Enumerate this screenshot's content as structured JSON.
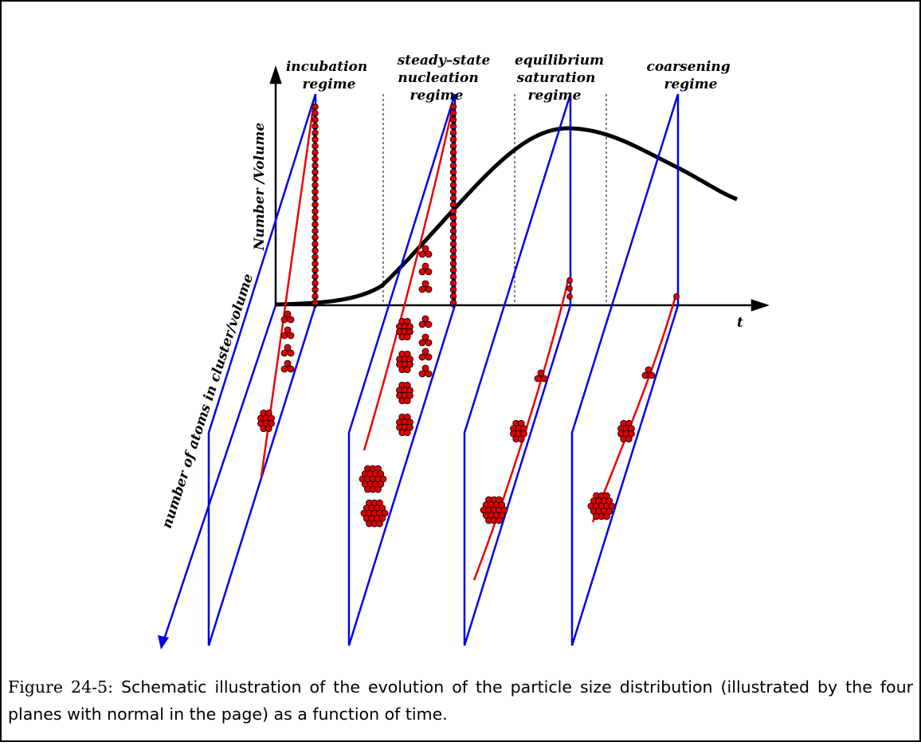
{
  "diagram": {
    "regime_labels": [
      {
        "lines": [
          "incubation",
          "regime"
        ]
      },
      {
        "lines": [
          "steady–state",
          "nucleation",
          "regime"
        ]
      },
      {
        "lines": [
          "equilibrium",
          "saturation",
          "regime"
        ]
      },
      {
        "lines": [
          "coarsening",
          "regime"
        ]
      }
    ],
    "y_axis_label": "Number /Volume",
    "x_axis_label": "t",
    "depth_axis_label": "number of atoms in cluster/volume",
    "colors": {
      "planes": "#0000ee",
      "distribution": "#ee0000",
      "atoms": "#dd0000",
      "monomer_dots": "#0000cc",
      "curve": "#000000"
    }
  },
  "caption": {
    "figure_number": "Figure 24-5:",
    "text": "Schematic illustration of the evolution of the particle size distribution (illustrated by the four planes with normal in the page) as a function of time."
  }
}
